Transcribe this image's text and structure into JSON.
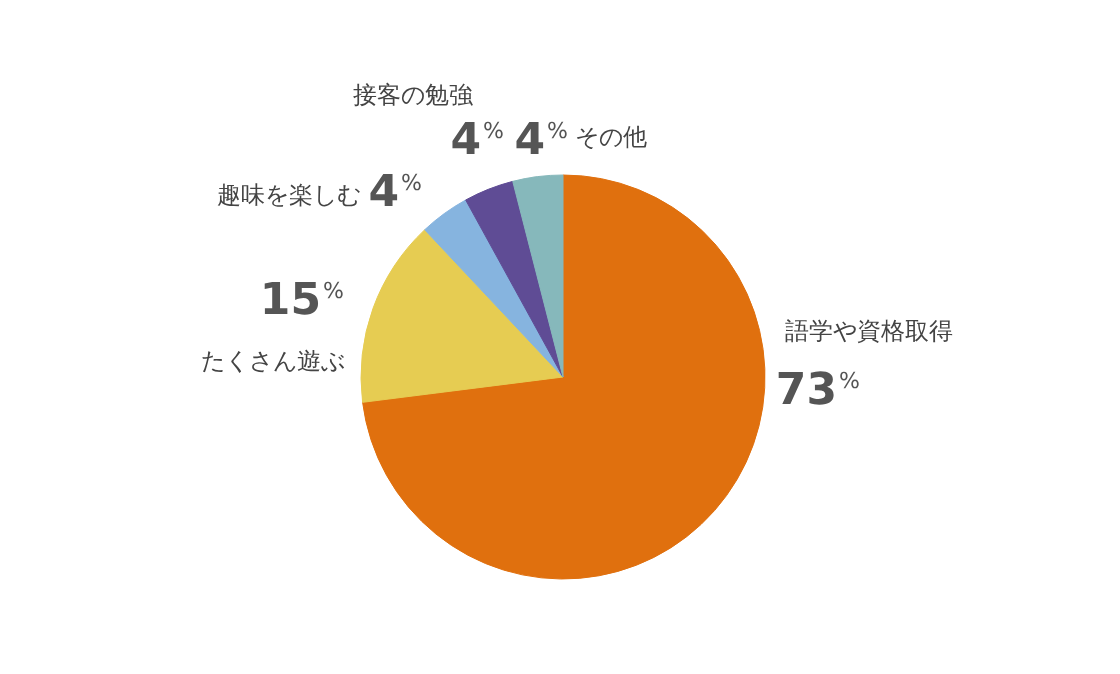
{
  "chart_data": {
    "type": "pie",
    "categories": [
      "語学や資格取得",
      "たくさん遊ぶ",
      "趣味を楽しむ",
      "接客の勉強",
      "その他"
    ],
    "values": [
      73,
      15,
      4,
      4,
      4
    ],
    "colors": [
      "#e0700e",
      "#e6cc52",
      "#86b4df",
      "#5f4c95",
      "#86b8bb"
    ],
    "value_labels": [
      "73%",
      "15%",
      "4%",
      "4%",
      "4%"
    ]
  }
}
